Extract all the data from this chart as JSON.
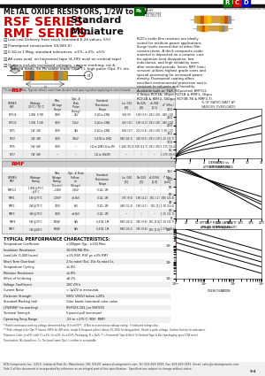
{
  "bg_color": "#ffffff",
  "title": "METAL OXIDE RESISTORS, 1/2W to 9W",
  "rsf_title": "RSF SERIES-",
  "rsf_subtitle": " Standard",
  "rmf_title": "RMF SERIES-",
  "rmf_subtitle": " Miniature",
  "red_color": "#cc0000",
  "logo_colors": [
    "#007700",
    "#cc0000",
    "#0000cc"
  ],
  "logo_letters": [
    "R",
    "C",
    "D"
  ],
  "features": [
    "Low cost Delivery from stock (standard E-24 values, 5%)",
    "Flameproof construction (UL94V-0)",
    "0.1Ω to 1 Meg, standard tolerances: ±1%, ±2%, ±5%",
    "All sizes avail. on horizontal tape (4-39V avail on vertical tape)",
    "Options include increased voltages, custom marking, cut &\n  formed leads, Sn-Pb solder leads (Opt. C), high pulse (Opt. P), etc."
  ],
  "desc_text": "RCD's oxide film resistors are ideally suited for medium-power applications. Surge levels exceed that of other film constructions. A thick composite-oxide material is deposited on a ceramic core for optimum heat dissipation, low inductance, and high reliability even after extended periods. Series RMF (mini version) utilizes highest grade cores and special processing for increased power density. Flameproof coating offers excellent environmental protection and is resistant to solvents and humidity. Available bulk or T&R (50pcs/reel RMF1/2, 2 Strips RCF1A, 2Kpcs RCF1B & RMF1, 1Kpcs RCF2B & RMF2, 500pcs RCF3B-7B & RMF3-7).",
  "rsf_col_headers": [
    "SERIES\nRSF",
    "Wattage\n25°C / 70°C",
    "Max.\nVol-tage\nRange",
    "Opt. #\nPeak\n(Pulse\nRating)",
    "Standard\nResistance\nRange",
    "La .032\n[.8]",
    "Da.026\n[.8]",
    "da.044\n[1.1]",
    "d\" (Min.)"
  ],
  "rsf_rows": [
    [
      "RSF1/4",
      "1/4W  0.7W",
      "300V",
      "24V",
      "0.1Ω to 1MΩ",
      "354 (9)",
      "138 (3.5)",
      ".031 (.80)",
      ".040 (.04)"
    ],
    [
      "RSF1/2",
      "1/2W  1.5W",
      "350V",
      "1.5kV",
      "0.1Ω to 1MΩ",
      "433 (11)",
      "169 (4.3)",
      ".031 (.80)",
      ".040 (.04)"
    ],
    [
      "RSF1",
      "1W  2W",
      "350V",
      "3kV",
      "0.1Ω to 1MΩ",
      "669 (17)",
      "212 (5.4)",
      ".031 (.80)",
      "1.00 (.27)"
    ],
    [
      "RSF2",
      "2W  4W",
      "350V",
      "4.5kV",
      "0.47Ω to 1MΩ",
      "850 (24.1)",
      "320 (8.1)",
      ".031 (.35)",
      "1.25 (31.7)"
    ],
    [
      "RSF5",
      "5W  6W",
      "750V",
      "---",
      "1Ω to 10M 1Ω to 2M",
      "1,260 (35.0)",
      "500 (12.7)",
      ".031 (.80)",
      "1.275 (32.4)"
    ],
    [
      "RSF7",
      "7W  9W",
      "---",
      "---",
      "1Ω to 1M/2M",
      "---",
      "---",
      "---",
      "1.575 (39.6)"
    ]
  ],
  "rmf_col_headers": [
    "SERIES\nRMF",
    "Wattage\nRating",
    "Max.\nVoltage\nRating\n(Derate)",
    "Opt. # Peak\n(Follow-\non\nVoltage)",
    "Standard\nResistance\nRange",
    "La .020\n[.5]",
    "Da.020\n[.5]",
    "d\".0394\n[1.0]",
    "l\" Min.\n[mm]"
  ],
  "rmf_rows": [
    [
      "RMF1/2",
      "1/4W @75°C\n---@5°C",
      "---200V",
      "2.5kV",
      "0.1Ω- 1M",
      "---",
      "---",
      "---",
      "---"
    ],
    [
      "RMF1",
      "1W @75°C",
      "-200V*",
      "±3.5kV",
      "0.1Ω- 1M",
      ".375 (9.5)",
      "160 (4.1)",
      ".051 (.1)",
      ".845 (21.4)"
    ],
    [
      "RMF2",
      "2W @75°C",
      "350V",
      "5kV",
      "0.1Ω- 1M",
      "460 (11.4)",
      "160 (4.1)",
      ".051 [1]",
      "1.00 (25.4)"
    ],
    [
      "RMF3",
      "3W @70°C",
      "350V",
      "±3.5kV",
      "0.1Ω- 1M",
      "---",
      "---",
      "---",
      "1.25 (31.7)"
    ],
    [
      "RMF5",
      "5W @70°C",
      "500W",
      "6kV",
      "0.47Ω- 1M",
      "860 (24.1)",
      "385 (9.8)",
      ".051 [1.0]",
      "1.25 (31.7)"
    ],
    [
      "RMF7",
      "7W @80°C",
      "500W",
      "6kV",
      "0.47Ω- 1M",
      "860 (24.1)",
      "385 (9.8)",
      ".051 [1.0]",
      "1.575 (39.6)"
    ]
  ],
  "perf_items": [
    [
      "Temperature Coefficient",
      "±100ppm Typ., ±200 Max."
    ],
    [
      "Insulation Resistance",
      "10,000 MΩ Min."
    ],
    [
      "Load Life (1,000 hours)",
      "±1% RSF, RSF µs ±5% RMF"
    ],
    [
      "Short Term Overload",
      "2.5x rated (5s), 10x 5s rated 1s"
    ],
    [
      "Temperature Cycling",
      "±1.8%"
    ],
    [
      "Moisture Resistance",
      "±1.8%"
    ],
    [
      "Effect of Soldering",
      "±0.2%"
    ],
    [
      "Voltage Coefficient",
      "100 V/V k"
    ],
    [
      "Current Noise",
      "< 1µV/V in measurab."
    ],
    [
      "Dielectric Strength",
      "500V (250V) below ±20%"
    ],
    [
      "Standard Marking (std)",
      "Color bands (standard) color value"
    ],
    [
      "LPS/RRSP (no marking)",
      "RSFXXX-103-J or RSFXXX"
    ],
    [
      "Terminal Strength",
      "5 pound pull (minimum)"
    ],
    [
      "Operating Temp Range",
      "-55 to +275°C (RSF, RMF)"
    ]
  ],
  "footer_text": "RCD-Components Inc., 520 E. Industrial Park Dr., Manchester, NH, 03109  www.rcd-components.com  Tel: 603-669-0054  Fax: 603-669-5455  Email: sales@rcdcomponents.com",
  "footer_note": "9-4",
  "page_note": "Side 2 of this document is incorporated by reference as an integral part of this specification.  Specifications subject to change without notice."
}
